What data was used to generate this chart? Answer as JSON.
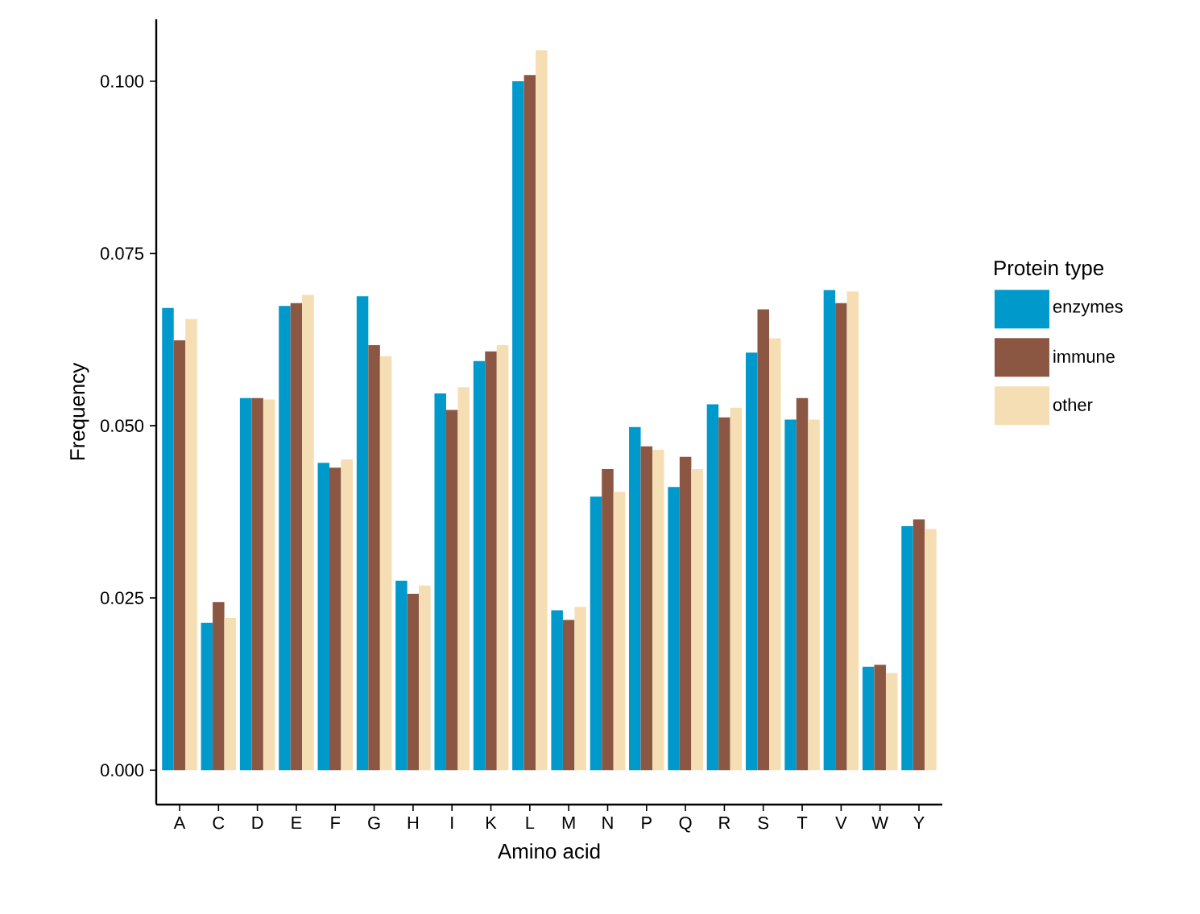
{
  "chart_data": {
    "type": "bar",
    "xlabel": "Amino acid",
    "ylabel": "Frequency",
    "legend_title": "Protein type",
    "legend": "right",
    "grid": false,
    "categories": [
      "A",
      "C",
      "D",
      "E",
      "F",
      "G",
      "H",
      "I",
      "K",
      "L",
      "M",
      "N",
      "P",
      "Q",
      "R",
      "S",
      "T",
      "V",
      "W",
      "Y"
    ],
    "ylim": [
      -0.005,
      0.109
    ],
    "yticks": [
      {
        "value": 0,
        "label": "0.000"
      },
      {
        "value": 0.025,
        "label": "0.025"
      },
      {
        "value": 0.05,
        "label": "0.050"
      },
      {
        "value": 0.075,
        "label": "0.075"
      },
      {
        "value": 0.1,
        "label": "0.100"
      }
    ],
    "series": [
      {
        "name": "enzymes",
        "color": "#0099cc",
        "values": [
          0.0671,
          0.0214,
          0.054,
          0.0674,
          0.0446,
          0.0688,
          0.0275,
          0.0547,
          0.0594,
          0.1,
          0.0232,
          0.0397,
          0.0498,
          0.0411,
          0.0531,
          0.0606,
          0.0509,
          0.0697,
          0.015,
          0.0354
        ]
      },
      {
        "name": "immune",
        "color": "#8b5742",
        "values": [
          0.0624,
          0.0244,
          0.054,
          0.0678,
          0.0439,
          0.0617,
          0.0256,
          0.0523,
          0.0608,
          0.1009,
          0.0218,
          0.0437,
          0.047,
          0.0455,
          0.0512,
          0.0669,
          0.054,
          0.0678,
          0.0153,
          0.0364
        ]
      },
      {
        "name": "other",
        "color": "#f5deb3",
        "values": [
          0.0655,
          0.0221,
          0.0538,
          0.069,
          0.0451,
          0.0601,
          0.0268,
          0.0556,
          0.0617,
          0.1045,
          0.0237,
          0.0404,
          0.0465,
          0.0437,
          0.0526,
          0.0627,
          0.0509,
          0.0695,
          0.0141,
          0.035
        ]
      }
    ]
  }
}
